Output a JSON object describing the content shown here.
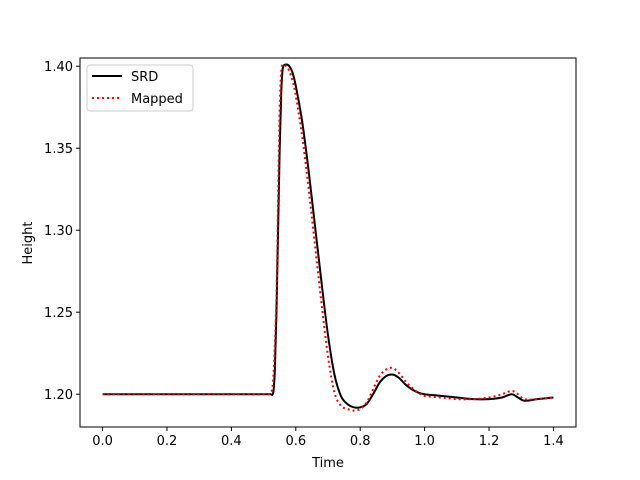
{
  "chart_data": {
    "type": "line",
    "title": "",
    "xlabel": "Time",
    "ylabel": "Height",
    "xlim": [
      -0.07,
      1.47
    ],
    "ylim": [
      1.18,
      1.405
    ],
    "xticks": [
      0.0,
      0.2,
      0.4,
      0.6,
      0.8,
      1.0,
      1.2,
      1.4
    ],
    "xtick_labels": [
      "0.0",
      "0.2",
      "0.4",
      "0.6",
      "0.8",
      "1.0",
      "1.2",
      "1.4"
    ],
    "yticks": [
      1.2,
      1.25,
      1.3,
      1.35,
      1.4
    ],
    "ytick_labels": [
      "1.20",
      "1.25",
      "1.30",
      "1.35",
      "1.40"
    ],
    "grid": false,
    "legend_position": "upper-left",
    "series": [
      {
        "name": "SRD",
        "color": "#000000",
        "style": "solid",
        "x": [
          0.0,
          0.1,
          0.2,
          0.3,
          0.4,
          0.5,
          0.52,
          0.53,
          0.535,
          0.54,
          0.545,
          0.55,
          0.555,
          0.56,
          0.57,
          0.58,
          0.59,
          0.6,
          0.62,
          0.64,
          0.66,
          0.68,
          0.7,
          0.72,
          0.74,
          0.76,
          0.78,
          0.8,
          0.82,
          0.84,
          0.86,
          0.88,
          0.9,
          0.92,
          0.94,
          0.96,
          0.98,
          1.0,
          1.05,
          1.1,
          1.15,
          1.2,
          1.24,
          1.27,
          1.29,
          1.31,
          1.35,
          1.4
        ],
        "y": [
          1.2,
          1.2,
          1.2,
          1.2,
          1.2,
          1.2,
          1.2,
          1.201,
          1.215,
          1.25,
          1.3,
          1.35,
          1.385,
          1.399,
          1.401,
          1.4,
          1.396,
          1.388,
          1.366,
          1.336,
          1.302,
          1.268,
          1.236,
          1.212,
          1.199,
          1.194,
          1.192,
          1.192,
          1.194,
          1.2,
          1.207,
          1.211,
          1.212,
          1.21,
          1.206,
          1.203,
          1.201,
          1.2,
          1.199,
          1.198,
          1.197,
          1.197,
          1.198,
          1.2,
          1.198,
          1.196,
          1.197,
          1.198
        ]
      },
      {
        "name": "Mapped",
        "color": "#ff0000",
        "style": "dotted",
        "x": [
          0.0,
          0.1,
          0.2,
          0.3,
          0.4,
          0.5,
          0.52,
          0.53,
          0.54,
          0.545,
          0.55,
          0.555,
          0.56,
          0.57,
          0.58,
          0.59,
          0.6,
          0.62,
          0.64,
          0.66,
          0.68,
          0.7,
          0.72,
          0.74,
          0.76,
          0.78,
          0.8,
          0.82,
          0.84,
          0.86,
          0.88,
          0.9,
          0.92,
          0.94,
          0.96,
          0.98,
          1.0,
          1.05,
          1.1,
          1.15,
          1.2,
          1.24,
          1.27,
          1.29,
          1.31,
          1.35,
          1.4
        ],
        "y": [
          1.2,
          1.2,
          1.2,
          1.2,
          1.2,
          1.2,
          1.201,
          1.21,
          1.26,
          1.32,
          1.375,
          1.397,
          1.401,
          1.4,
          1.397,
          1.391,
          1.382,
          1.357,
          1.325,
          1.29,
          1.255,
          1.223,
          1.201,
          1.193,
          1.191,
          1.19,
          1.191,
          1.195,
          1.203,
          1.211,
          1.215,
          1.216,
          1.213,
          1.208,
          1.204,
          1.201,
          1.199,
          1.198,
          1.197,
          1.197,
          1.198,
          1.2,
          1.202,
          1.2,
          1.197,
          1.197,
          1.198
        ]
      }
    ]
  }
}
